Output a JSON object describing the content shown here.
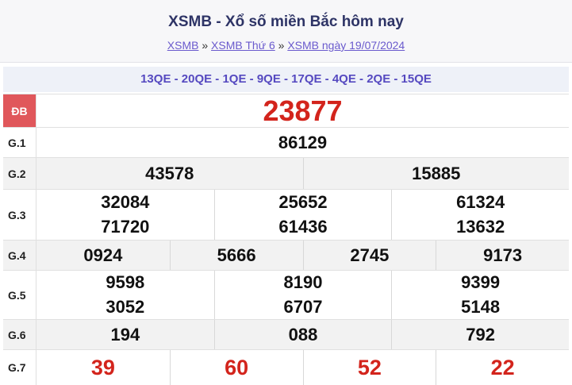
{
  "header": {
    "title": "XSMB - Xổ số miền Bắc hôm nay",
    "breadcrumbs": [
      "XSMB",
      "XSMB Thứ 6",
      "XSMB ngày 19/07/2024"
    ],
    "separator": "»"
  },
  "codes": "13QE - 20QE - 1QE - 9QE - 17QE - 4QE - 2QE - 15QE",
  "prizes": [
    {
      "label": "ĐB",
      "numbers": [
        "23877"
      ]
    },
    {
      "label": "G.1",
      "numbers": [
        "86129"
      ]
    },
    {
      "label": "G.2",
      "numbers": [
        "43578",
        "15885"
      ]
    },
    {
      "label": "G.3",
      "numbers": [
        "32084",
        "25652",
        "61324",
        "71720",
        "61436",
        "13632"
      ]
    },
    {
      "label": "G.4",
      "numbers": [
        "0924",
        "5666",
        "2745",
        "9173"
      ]
    },
    {
      "label": "G.5",
      "numbers": [
        "9598",
        "8190",
        "9399",
        "3052",
        "6707",
        "5148"
      ]
    },
    {
      "label": "G.6",
      "numbers": [
        "194",
        "088",
        "792"
      ]
    },
    {
      "label": "G.7",
      "numbers": [
        "39",
        "60",
        "52",
        "22"
      ]
    }
  ]
}
